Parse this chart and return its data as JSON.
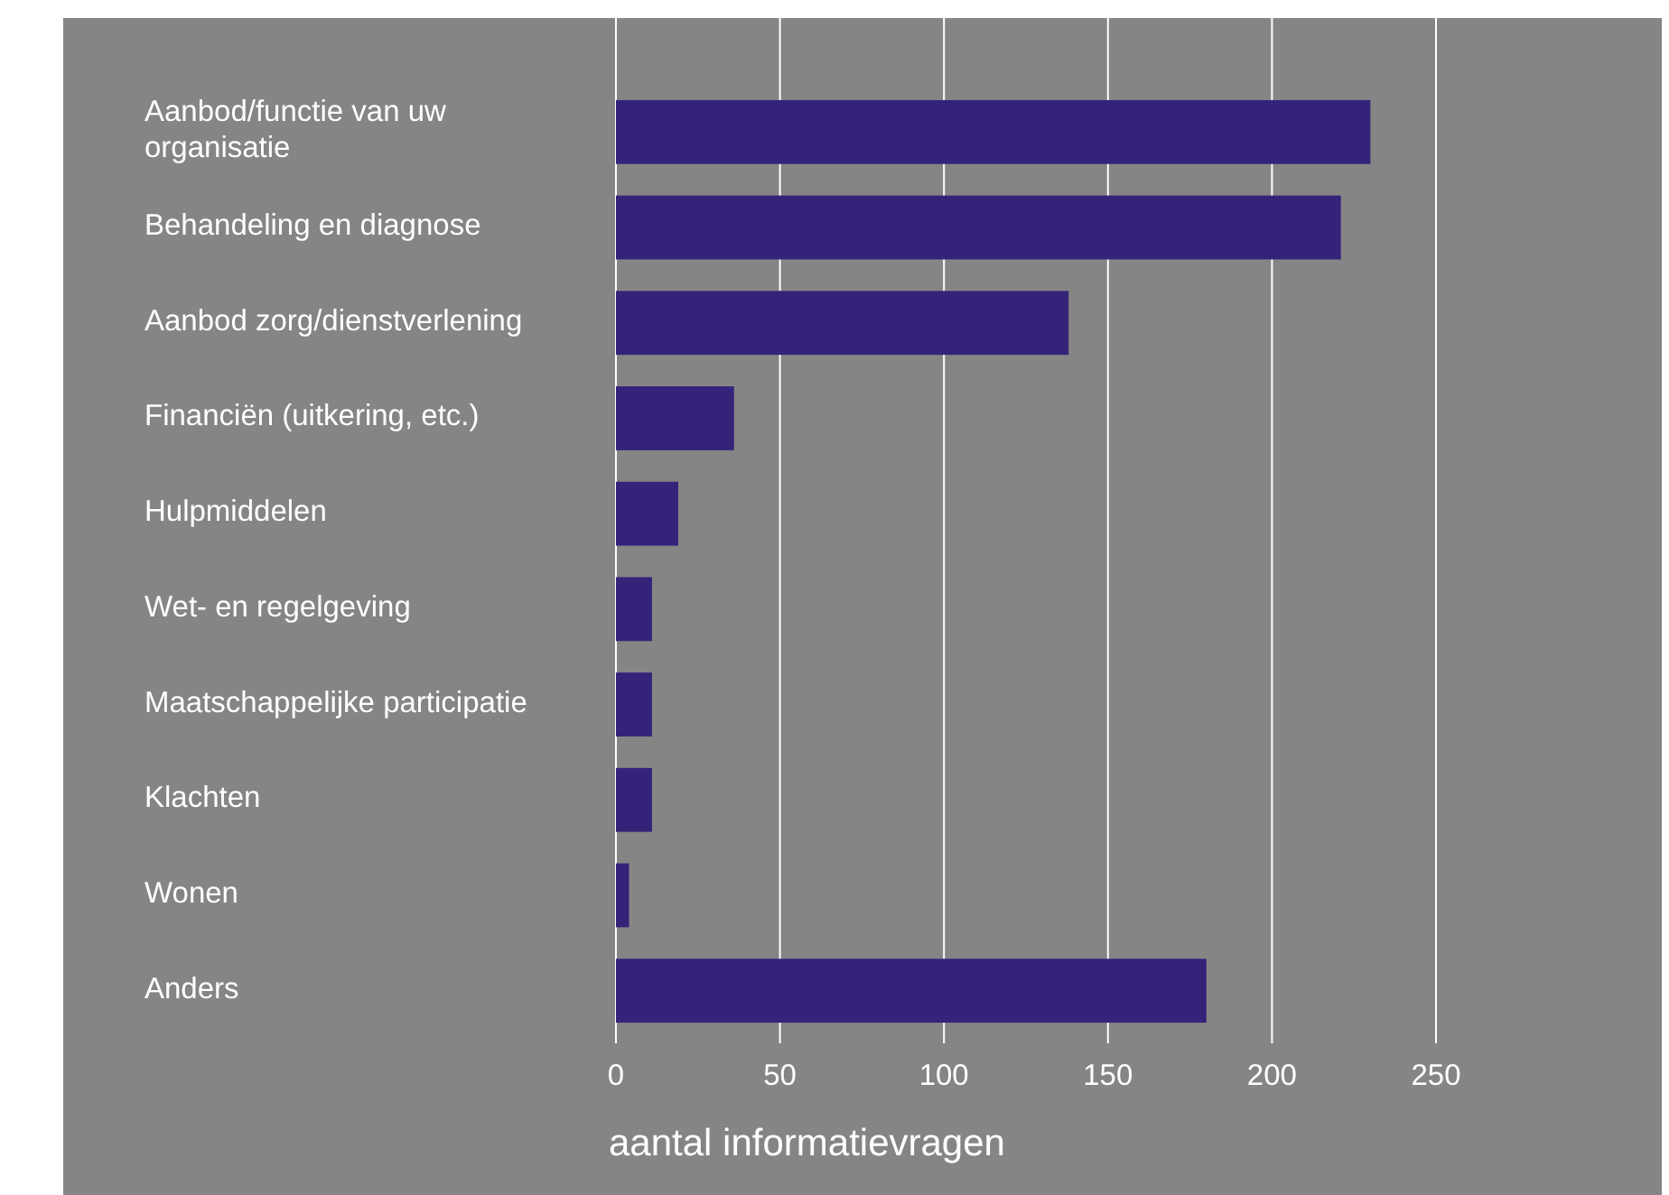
{
  "chart_data": {
    "type": "bar",
    "orientation": "horizontal",
    "xlabel": "aantal informatievragen",
    "categories": [
      "Aanbod/functie van uw organisatie",
      "Behandeling en diagnose",
      "Aanbod zorg/dienstverlening",
      "Financiën (uitkering, etc.)",
      "Hulpmiddelen",
      "Wet- en regelgeving",
      "Maatschappelijke participatie",
      "Klachten",
      "Wonen",
      "Anders"
    ],
    "values": [
      230,
      221,
      138,
      36,
      19,
      11,
      11,
      11,
      4,
      180
    ],
    "color": "#35237a",
    "xlim": [
      0,
      250
    ],
    "xticks": [
      0,
      50,
      100,
      150,
      200,
      250
    ],
    "grid": "x"
  }
}
